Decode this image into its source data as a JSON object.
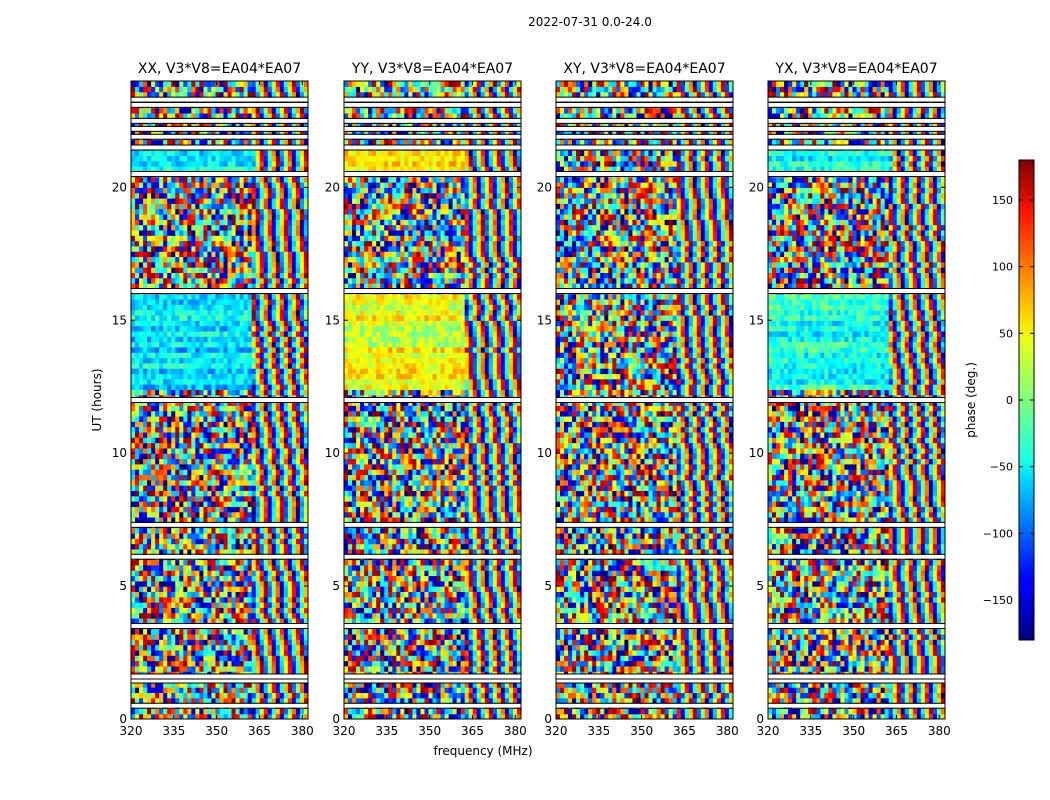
{
  "figure": {
    "suptitle": "2022-07-31 0.0-24.0",
    "ylabel": "UT (hours)",
    "xlabel": "frequency (MHz)"
  },
  "chart_data": {
    "type": "heatmap",
    "value_meaning": "phase (deg.)",
    "xlim": [
      320,
      382
    ],
    "ylim": [
      0,
      24
    ],
    "x_ticks": [
      320,
      335,
      350,
      365,
      380
    ],
    "y_ticks": [
      0,
      5,
      10,
      15,
      20
    ],
    "panels": [
      {
        "title": "XX, V3*V8=EA04*EA07",
        "polarization": "XX"
      },
      {
        "title": "YY, V3*V8=EA04*EA07",
        "polarization": "YY"
      },
      {
        "title": "XY, V3*V8=EA04*EA07",
        "polarization": "XY"
      },
      {
        "title": "YX, V3*V8=EA04*EA07",
        "polarization": "YX"
      }
    ],
    "data_gaps_hours": [
      0.5,
      1.45,
      1.6,
      3.5,
      6.1,
      7.3,
      12.0,
      16.1,
      20.5,
      21.5,
      21.9,
      22.2,
      22.5,
      23.1,
      23.3
    ],
    "colorbar": {
      "label": "phase (deg.)",
      "range": [
        -180,
        180
      ],
      "ticks": [
        -150,
        -100,
        -50,
        0,
        50,
        100,
        150
      ],
      "tick_labels": [
        "−150",
        "−100",
        "−50",
        "0",
        "50",
        "100",
        "150"
      ],
      "colormap": "jet"
    },
    "grid": false
  }
}
